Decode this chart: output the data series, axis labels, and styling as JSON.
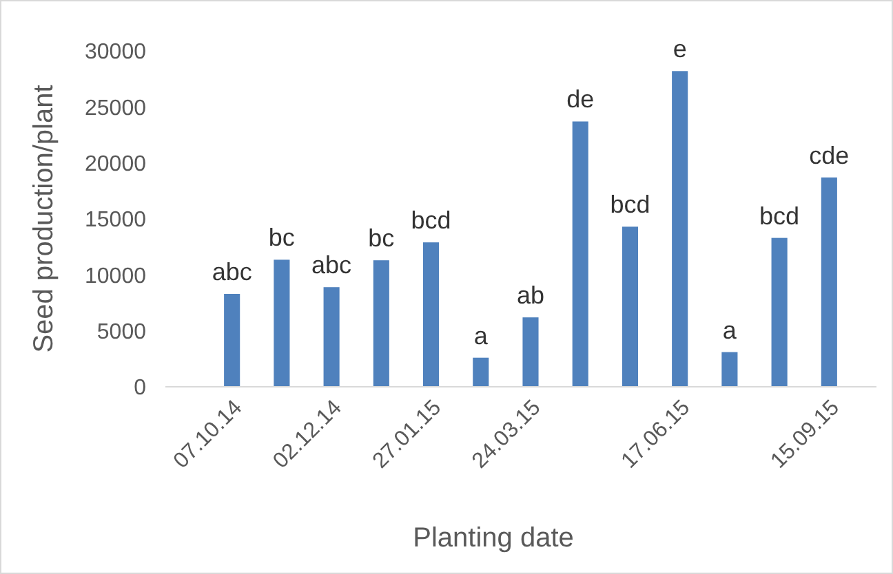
{
  "chart_data": {
    "type": "bar",
    "xlabel": "Planting date",
    "ylabel": "Seed production/plant",
    "categories": [
      "07.10.14",
      null,
      "02.12.14",
      null,
      "27.01.15",
      null,
      "24.03.15",
      null,
      null,
      "17.06.15",
      null,
      null,
      "15.09.15"
    ],
    "values": [
      8300,
      11350,
      8900,
      11300,
      12900,
      2600,
      6200,
      23700,
      14300,
      28200,
      3100,
      13300,
      18700
    ],
    "color": "#4f81bd",
    "ylim": [
      0,
      30000
    ],
    "yticks": [
      0,
      5000,
      10000,
      15000,
      20000,
      25000,
      30000
    ],
    "grid": false,
    "annotations": [
      "abc",
      "bc",
      "abc",
      "bc",
      "bcd",
      "a",
      "ab",
      "de",
      "bcd",
      "e",
      "a",
      "bcd",
      "cde"
    ]
  }
}
